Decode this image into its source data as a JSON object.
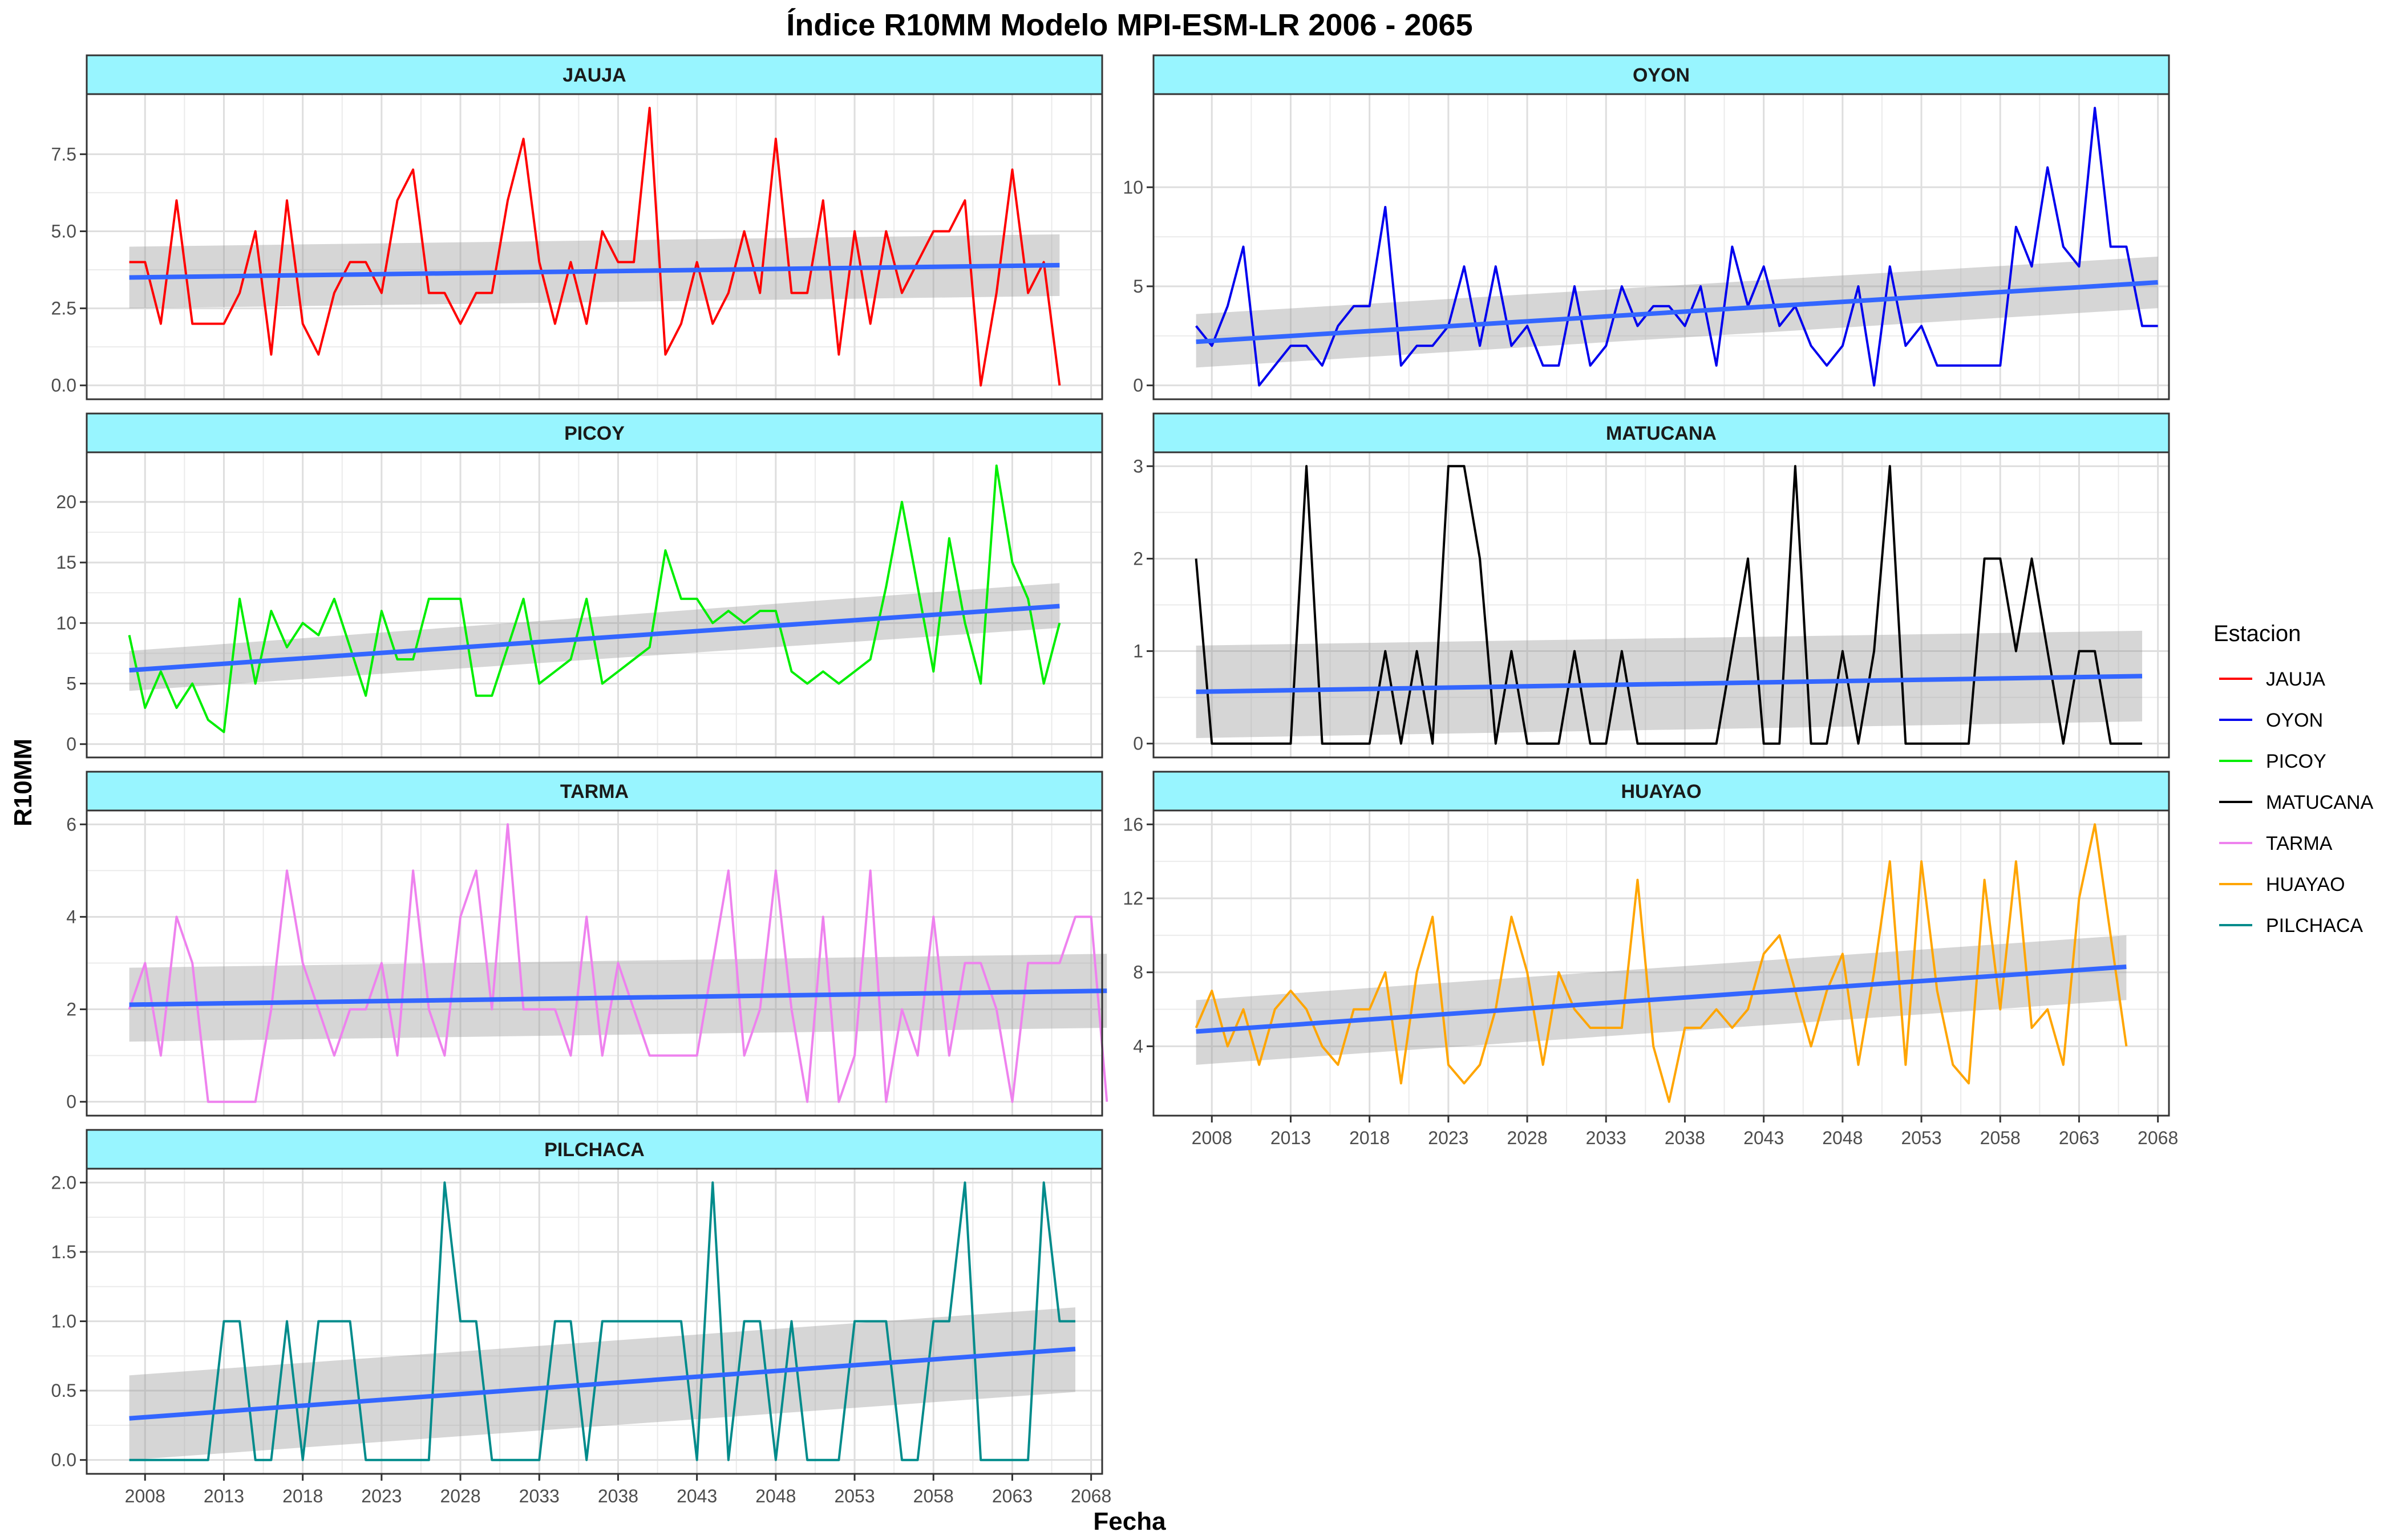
{
  "chart_data": {
    "type": "line",
    "title": "Índice R10MM Modelo MPI-ESM-LR 2006 - 2065",
    "xlabel": "Fecha",
    "ylabel": "R10MM",
    "xlim": [
      2004.3,
      2068.7
    ],
    "x_ticks": [
      2008,
      2013,
      2018,
      2023,
      2028,
      2033,
      2038,
      2043,
      2048,
      2053,
      2058,
      2063,
      2068
    ],
    "x_start": 2007,
    "x_step": 1,
    "legend": {
      "title": "Estacion",
      "position": "right",
      "items": [
        {
          "label": "JAUJA",
          "color": "#ff0000"
        },
        {
          "label": "OYON",
          "color": "#0000ee"
        },
        {
          "label": "PICOY",
          "color": "#00ee00"
        },
        {
          "label": "MATUCANA",
          "color": "#000000"
        },
        {
          "label": "TARMA",
          "color": "#ee82ee"
        },
        {
          "label": "HUAYAO",
          "color": "#ffa500"
        },
        {
          "label": "PILCHACA",
          "color": "#008b8b"
        }
      ]
    },
    "trend_color": "#3366ff",
    "band_color": "#999999",
    "strip_color": "#98f5ff",
    "panels": [
      {
        "name": "JAUJA",
        "color": "#ff0000",
        "ylim": [
          -0.45,
          9.45
        ],
        "y_ticks": [
          0.0,
          2.5,
          5.0,
          7.5
        ],
        "y_tick_labels": [
          "0.0",
          "2.5",
          "5.0",
          "7.5"
        ],
        "values": [
          4,
          4,
          2,
          6,
          2,
          2,
          2,
          3,
          5,
          1,
          6,
          2,
          1,
          3,
          4,
          4,
          3,
          6,
          7,
          3,
          3,
          2,
          3,
          3,
          6,
          8,
          4,
          2,
          4,
          2,
          5,
          4,
          4,
          9,
          1,
          2,
          4,
          2,
          3,
          5,
          3,
          8,
          3,
          3,
          6,
          1,
          5,
          2,
          5,
          3,
          4,
          5,
          5,
          6,
          0,
          3,
          7,
          3,
          4,
          0
        ],
        "trend": [
          3.5,
          3.9
        ],
        "band": [
          [
            2.5,
            4.5
          ],
          [
            2.9,
            4.9
          ]
        ]
      },
      {
        "name": "OYON",
        "color": "#0000ee",
        "ylim": [
          -0.7,
          14.7
        ],
        "y_ticks": [
          0,
          5,
          10
        ],
        "y_tick_labels": [
          "0",
          "5",
          "10"
        ],
        "values": [
          3,
          2,
          4,
          7,
          0,
          1,
          2,
          2,
          1,
          3,
          4,
          4,
          9,
          1,
          2,
          2,
          3,
          6,
          2,
          6,
          2,
          3,
          1,
          1,
          5,
          1,
          2,
          5,
          3,
          4,
          4,
          3,
          5,
          1,
          7,
          4,
          6,
          3,
          4,
          2,
          1,
          2,
          5,
          0,
          6,
          2,
          3,
          1,
          1,
          1,
          1,
          1,
          8,
          6,
          11,
          7,
          6,
          14,
          7,
          7,
          3,
          3
        ],
        "trend": [
          2.2,
          5.2
        ],
        "band": [
          [
            0.9,
            3.6
          ],
          [
            3.9,
            6.5
          ]
        ]
      },
      {
        "name": "PICOY",
        "color": "#00ee00",
        "ylim": [
          -1.1,
          24.1
        ],
        "y_ticks": [
          0,
          5,
          10,
          15,
          20
        ],
        "y_tick_labels": [
          "0",
          "5",
          "10",
          "15",
          "20"
        ],
        "values": [
          9,
          3,
          6,
          3,
          5,
          2,
          1,
          12,
          5,
          11,
          8,
          10,
          9,
          12,
          8,
          4,
          11,
          7,
          7,
          12,
          12,
          12,
          4,
          4,
          8,
          12,
          5,
          6,
          7,
          12,
          5,
          6,
          7,
          8,
          16,
          12,
          12,
          10,
          11,
          10,
          11,
          11,
          6,
          5,
          6,
          5,
          6,
          7,
          13,
          20,
          13,
          6,
          17,
          10,
          5,
          23,
          15,
          12,
          5,
          10
        ],
        "trend": [
          6.1,
          11.4
        ],
        "band": [
          [
            4.4,
            7.7
          ],
          [
            9.6,
            13.3
          ]
        ]
      },
      {
        "name": "MATUCANA",
        "color": "#000000",
        "ylim": [
          -0.15,
          3.15
        ],
        "y_ticks": [
          0,
          1,
          2,
          3
        ],
        "y_tick_labels": [
          "0",
          "1",
          "2",
          "3"
        ],
        "values": [
          2,
          0,
          0,
          0,
          0,
          0,
          0,
          3,
          0,
          0,
          0,
          0,
          1,
          0,
          1,
          0,
          3,
          3,
          2,
          0,
          1,
          0,
          0,
          0,
          1,
          0,
          0,
          1,
          0,
          0,
          0,
          0,
          0,
          0,
          1,
          2,
          0,
          0,
          3,
          0,
          0,
          1,
          0,
          1,
          3,
          0,
          0,
          0,
          0,
          0,
          2,
          2,
          1,
          2,
          1,
          0,
          1,
          1,
          0,
          0,
          0
        ],
        "trend": [
          0.56,
          0.73
        ],
        "band": [
          [
            0.06,
            1.06
          ],
          [
            0.24,
            1.22
          ]
        ]
      },
      {
        "name": "TARMA",
        "color": "#ee82ee",
        "ylim": [
          -0.3,
          6.3
        ],
        "y_ticks": [
          0,
          2,
          4,
          6
        ],
        "y_tick_labels": [
          "0",
          "2",
          "4",
          "6"
        ],
        "values": [
          2,
          3,
          1,
          4,
          3,
          0,
          0,
          0,
          0,
          2,
          5,
          3,
          2,
          1,
          2,
          2,
          3,
          1,
          5,
          2,
          1,
          4,
          5,
          2,
          6,
          2,
          2,
          2,
          1,
          4,
          1,
          3,
          2,
          1,
          1,
          1,
          1,
          3,
          5,
          1,
          2,
          5,
          2,
          0,
          4,
          0,
          1,
          5,
          0,
          2,
          1,
          4,
          1,
          3,
          3,
          2,
          0,
          3,
          3,
          3,
          4,
          4,
          0
        ],
        "trend": [
          2.1,
          2.4
        ],
        "band": [
          [
            1.3,
            2.9
          ],
          [
            1.6,
            3.2
          ]
        ]
      },
      {
        "name": "HUAYAO",
        "color": "#ffa500",
        "ylim": [
          0.25,
          16.75
        ],
        "y_ticks": [
          4,
          8,
          12,
          16
        ],
        "y_tick_labels": [
          "4",
          "8",
          "12",
          "16"
        ],
        "values": [
          5,
          7,
          4,
          6,
          3,
          6,
          7,
          6,
          4,
          3,
          6,
          6,
          8,
          2,
          8,
          11,
          3,
          2,
          3,
          6,
          11,
          8,
          3,
          8,
          6,
          5,
          5,
          5,
          13,
          4,
          1,
          5,
          5,
          6,
          5,
          6,
          9,
          10,
          7,
          4,
          7,
          9,
          3,
          8,
          14,
          3,
          14,
          7,
          3,
          2,
          13,
          6,
          14,
          5,
          6,
          3,
          12,
          16,
          10,
          4
        ],
        "trend": [
          4.8,
          8.3
        ],
        "band": [
          [
            3.0,
            6.5
          ],
          [
            6.5,
            10.0
          ]
        ]
      },
      {
        "name": "PILCHACA",
        "color": "#008b8b",
        "ylim": [
          -0.1,
          2.1
        ],
        "y_ticks": [
          0.0,
          0.5,
          1.0,
          1.5,
          2.0
        ],
        "y_tick_labels": [
          "0.0",
          "0.5",
          "1.0",
          "1.5",
          "2.0"
        ],
        "values": [
          0,
          0,
          0,
          0,
          0,
          0,
          1,
          1,
          0,
          0,
          1,
          0,
          1,
          1,
          1,
          0,
          0,
          0,
          0,
          0,
          2,
          1,
          1,
          0,
          0,
          0,
          0,
          1,
          1,
          0,
          1,
          1,
          1,
          1,
          1,
          1,
          0,
          2,
          0,
          1,
          1,
          0,
          1,
          0,
          0,
          0,
          1,
          1,
          1,
          0,
          0,
          1,
          1,
          2,
          0,
          0,
          0,
          0,
          2,
          1,
          1
        ],
        "trend": [
          0.3,
          0.8
        ],
        "band": [
          [
            0.0,
            0.61
          ],
          [
            0.49,
            1.1
          ]
        ]
      }
    ]
  }
}
